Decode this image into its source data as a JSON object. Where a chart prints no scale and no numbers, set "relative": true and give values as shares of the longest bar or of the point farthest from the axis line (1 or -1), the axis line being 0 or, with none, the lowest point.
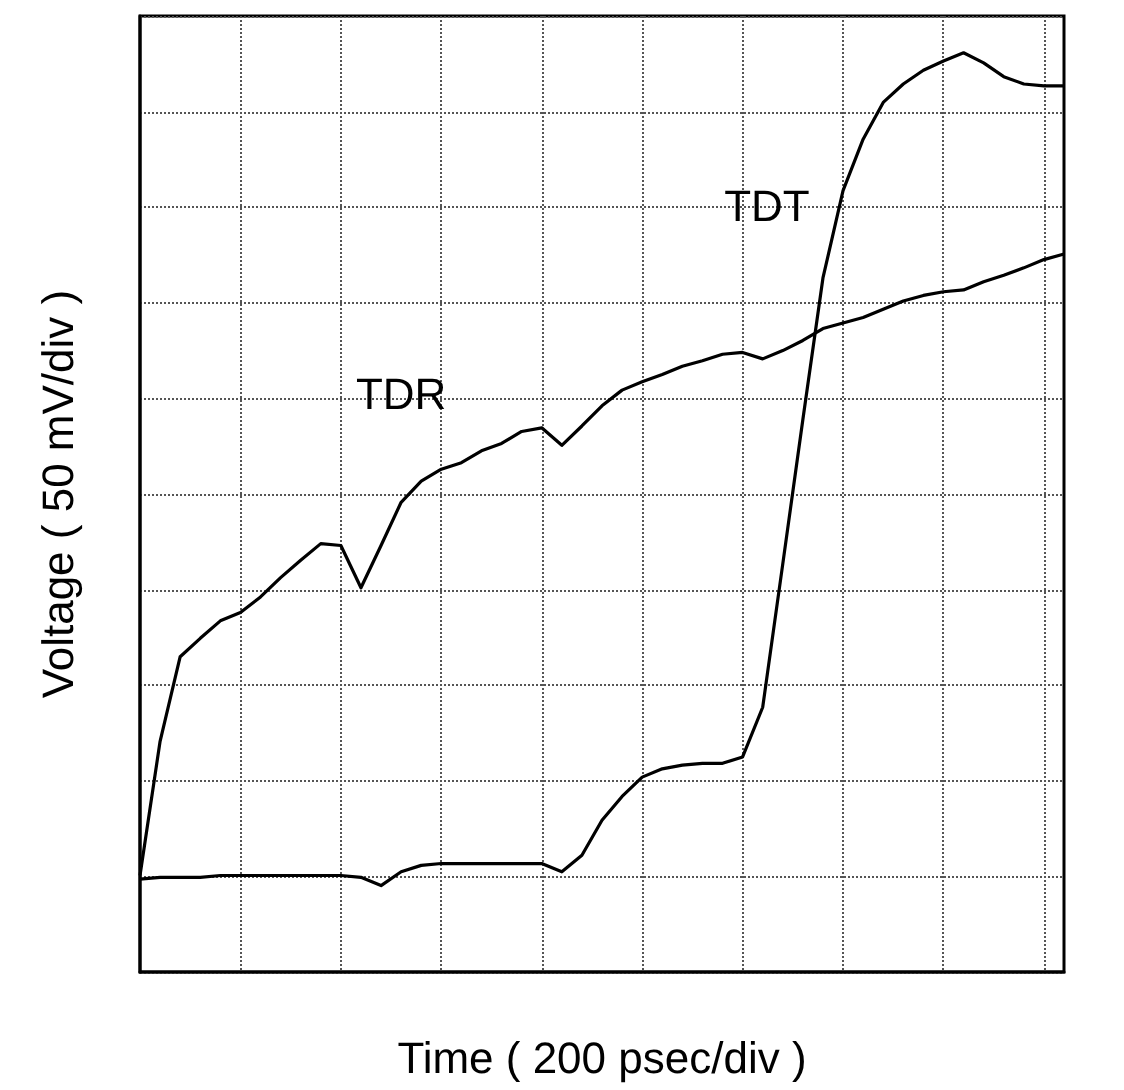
{
  "chart_data": {
    "type": "line",
    "relative": true,
    "xlabel": "Time ( 200 psec/div )",
    "ylabel": "Voltage ( 50 mV/div )",
    "grid": true,
    "legend": false,
    "marker": "none",
    "line_style": "solid",
    "categories": [
      null,
      null,
      null,
      null,
      null,
      null,
      null,
      null,
      null,
      null,
      null,
      null,
      null,
      null,
      null,
      null,
      null,
      null,
      null,
      null,
      null,
      null,
      null,
      null,
      null,
      null,
      null,
      null,
      null,
      null,
      null,
      null,
      null,
      null,
      null,
      null,
      null,
      null,
      null,
      null,
      null,
      null,
      null,
      null,
      null,
      null,
      null
    ],
    "series": [
      {
        "name": "TDR",
        "color": "#000000",
        "values": [
          0.105,
          0.251,
          0.343,
          0.363,
          0.382,
          0.391,
          0.408,
          0.429,
          0.448,
          0.466,
          0.464,
          0.418,
          0.464,
          0.511,
          0.534,
          0.547,
          0.554,
          0.567,
          0.575,
          0.588,
          0.592,
          0.573,
          0.594,
          0.616,
          0.633,
          0.642,
          0.65,
          0.659,
          0.665,
          0.672,
          0.674,
          0.667,
          0.676,
          0.687,
          0.7,
          0.706,
          0.712,
          0.721,
          0.73,
          0.736,
          0.74,
          0.742,
          0.751,
          0.758,
          0.766,
          0.775,
          0.781
        ]
      },
      {
        "name": "TDT",
        "color": "#000000",
        "values": [
          0.101,
          0.103,
          0.103,
          0.103,
          0.105,
          0.105,
          0.105,
          0.105,
          0.105,
          0.105,
          0.105,
          0.103,
          0.094,
          0.109,
          0.116,
          0.118,
          0.118,
          0.118,
          0.118,
          0.118,
          0.118,
          0.109,
          0.127,
          0.165,
          0.191,
          0.212,
          0.221,
          0.225,
          0.227,
          0.227,
          0.234,
          0.288,
          0.444,
          0.601,
          0.755,
          0.85,
          0.906,
          0.946,
          0.966,
          0.981,
          0.991,
          1,
          0.989,
          0.974,
          0.966,
          0.964,
          0.964
        ]
      }
    ]
  }
}
